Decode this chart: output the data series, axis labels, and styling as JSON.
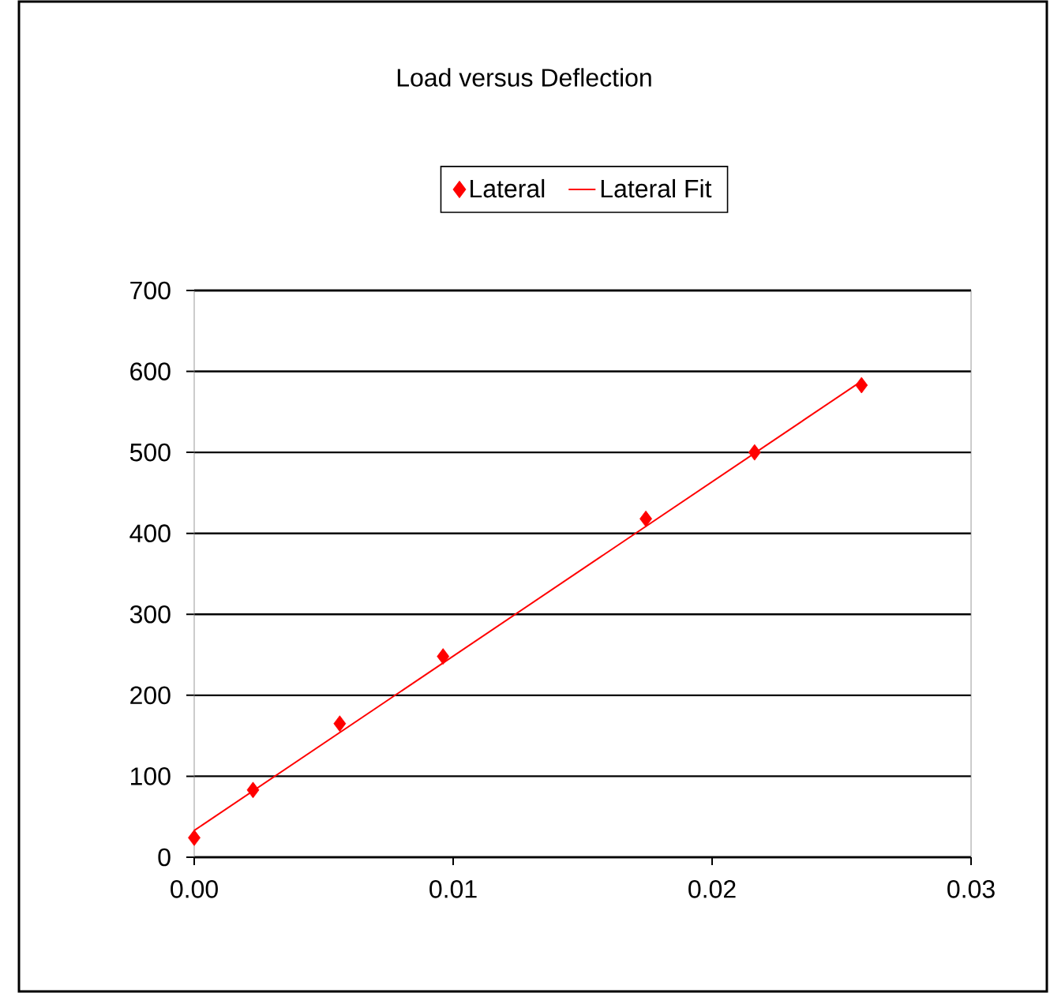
{
  "chart_data": {
    "type": "scatter",
    "title": "Load versus Deflection",
    "series": [
      {
        "name": "Lateral",
        "color": "#ff0000",
        "marker": "diamond",
        "x": [
          0.0,
          0.00227,
          0.00562,
          0.00961,
          0.01744,
          0.02164,
          0.02577
        ],
        "values": [
          24,
          83,
          165,
          248,
          418,
          500,
          583
        ]
      },
      {
        "name": "Lateral Fit",
        "type": "line",
        "color": "#ff0000",
        "marker": "none",
        "line_style": "solid",
        "x": [
          0.0,
          0.02577
        ],
        "values": [
          33,
          588
        ]
      }
    ],
    "xlim": [
      0,
      0.03
    ],
    "ylim": [
      0,
      700
    ],
    "xticks": [
      {
        "value": 0,
        "label": "0.00"
      },
      0.01,
      0.02,
      0.03
    ],
    "yticks": [
      0,
      100,
      200,
      300,
      400,
      500,
      600,
      700
    ],
    "grid": "y",
    "legend": "top"
  }
}
